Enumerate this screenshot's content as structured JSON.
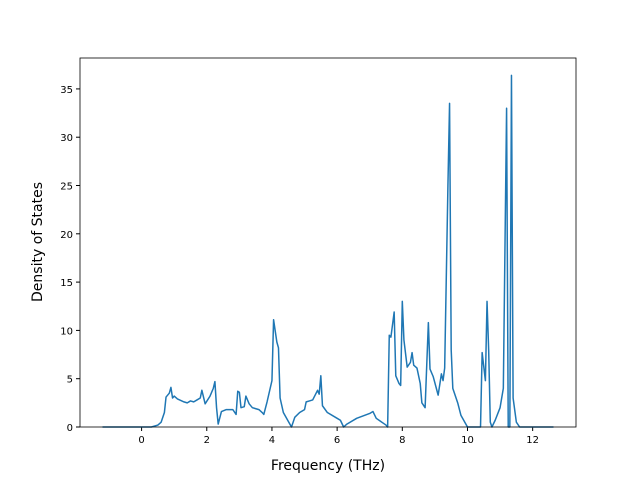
{
  "chart_data": {
    "type": "line",
    "x_label": "Frequency (THz)",
    "y_label": "Density of States",
    "xlim": [
      -1.89,
      13.33
    ],
    "ylim": [
      0,
      38.2
    ],
    "xticks": [
      0,
      2,
      4,
      6,
      8,
      10,
      12
    ],
    "yticks": [
      0,
      5,
      10,
      15,
      20,
      25,
      30,
      35
    ],
    "grid": false,
    "series": [
      {
        "color": "#1f77b4",
        "x": [
          -1.2,
          0.3,
          0.5,
          0.6,
          0.7,
          0.75,
          0.85,
          0.9,
          0.95,
          1.0,
          1.1,
          1.3,
          1.4,
          1.5,
          1.6,
          1.7,
          1.8,
          1.85,
          1.95,
          2.1,
          2.2,
          2.25,
          2.3,
          2.35,
          2.45,
          2.6,
          2.8,
          2.9,
          2.95,
          3.0,
          3.05,
          3.15,
          3.2,
          3.3,
          3.4,
          3.6,
          3.7,
          3.75,
          3.85,
          4.0,
          4.05,
          4.15,
          4.2,
          4.25,
          4.35,
          4.5,
          4.6,
          4.7,
          4.85,
          5.0,
          5.05,
          5.15,
          5.25,
          5.4,
          5.45,
          5.5,
          5.55,
          5.7,
          6.0,
          6.1,
          6.2,
          6.3,
          6.6,
          7.0,
          7.1,
          7.2,
          7.5,
          7.55,
          7.6,
          7.65,
          7.75,
          7.8,
          7.9,
          7.95,
          8.0,
          8.05,
          8.15,
          8.25,
          8.3,
          8.35,
          8.45,
          8.55,
          8.6,
          8.7,
          8.8,
          8.85,
          8.95,
          9.1,
          9.2,
          9.25,
          9.3,
          9.4,
          9.45,
          9.5,
          9.55,
          9.7,
          9.8,
          10.0,
          10.4,
          10.45,
          10.55,
          10.6,
          10.65,
          10.7,
          10.75,
          10.85,
          11.0,
          11.1,
          11.2,
          11.25,
          11.3,
          11.35,
          11.4,
          11.5,
          11.6,
          12.64
        ],
        "values": [
          0,
          0,
          0.2,
          0.5,
          1.5,
          3.1,
          3.5,
          4.1,
          3.0,
          3.2,
          2.9,
          2.6,
          2.5,
          2.7,
          2.6,
          2.8,
          3.0,
          3.8,
          2.4,
          3.2,
          4.0,
          4.7,
          2.0,
          0.3,
          1.6,
          1.8,
          1.8,
          1.3,
          3.7,
          3.6,
          2.0,
          2.1,
          3.2,
          2.4,
          2.0,
          1.8,
          1.5,
          1.3,
          2.6,
          4.8,
          11.1,
          8.8,
          8.2,
          3.0,
          1.5,
          0.6,
          0,
          1.0,
          1.5,
          1.8,
          2.6,
          2.7,
          2.8,
          3.8,
          3.4,
          5.3,
          2.2,
          1.5,
          0.9,
          0.7,
          0,
          0.3,
          0.9,
          1.4,
          1.6,
          0.9,
          0.2,
          0,
          9.5,
          9.3,
          11.9,
          5.3,
          4.5,
          4.3,
          13.0,
          9.0,
          6.2,
          6.7,
          7.7,
          6.4,
          6.1,
          4.5,
          2.5,
          2.0,
          10.8,
          6.0,
          5.2,
          3.3,
          5.5,
          4.8,
          6.1,
          25,
          33.5,
          8.0,
          4.0,
          2.5,
          1.2,
          0,
          0,
          7.7,
          4.8,
          13.0,
          8.0,
          0.5,
          0,
          0.7,
          2.0,
          4.0,
          33,
          0,
          0,
          36.4,
          3.0,
          0.5,
          0,
          0
        ]
      }
    ]
  }
}
